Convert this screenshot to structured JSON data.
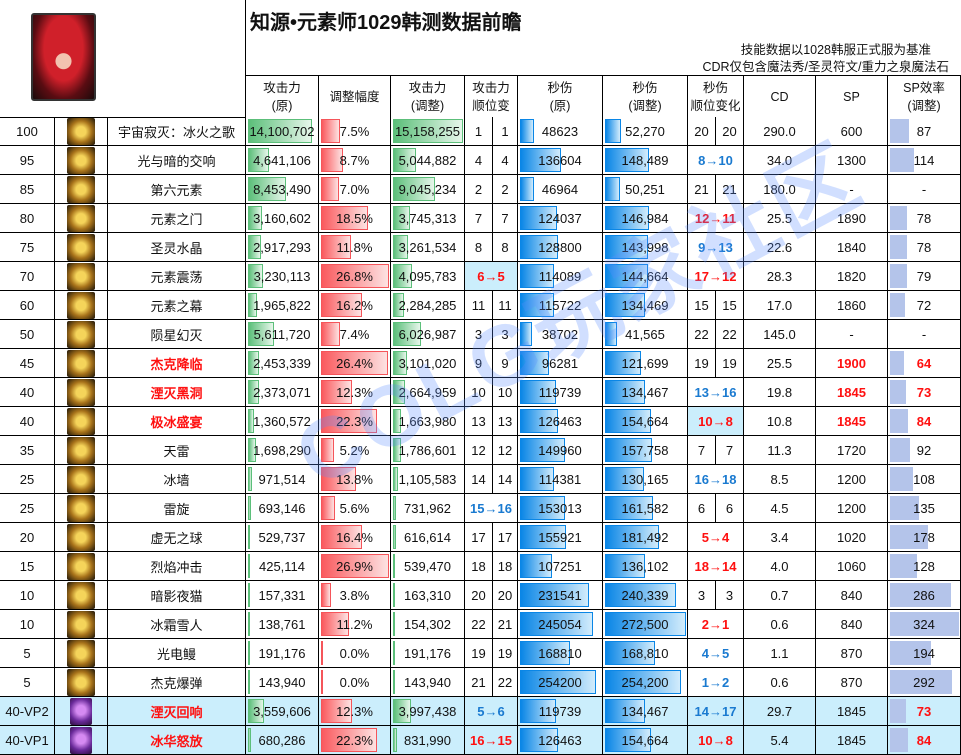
{
  "title": "知源•元素师1029韩测数据前瞻",
  "notes": [
    "技能数据以1028韩服正式服为基准",
    "CDR仅包含魔法秀/圣灵符文/重力之泉魔法石"
  ],
  "watermark": "COLG玩家社区",
  "headers": {
    "atk_orig": [
      "攻击力",
      "(原)"
    ],
    "adj": [
      "调整幅度"
    ],
    "atk_new": [
      "攻击力",
      "(调整)"
    ],
    "atk_rank": [
      "攻击力",
      "顺位变"
    ],
    "dps_orig": [
      "秒伤",
      "(原)"
    ],
    "dps_new": [
      "秒伤",
      "(调整)"
    ],
    "dps_rank": [
      "秒伤",
      "顺位变化"
    ],
    "cd": [
      "CD"
    ],
    "sp": [
      "SP"
    ],
    "speff": [
      "SP效率",
      "(调整)"
    ]
  },
  "colors": {
    "red": "#ff1010",
    "blue": "#1a7ad0",
    "green_bar": "#5cbf7a",
    "red_bar": "#fa5a5e",
    "blue_bar": "#0a86e6",
    "sp_bar": "#b4c4ea",
    "highlight": "#cbeefc"
  },
  "rows": [
    {
      "lv": "100",
      "icon": "skill-icon",
      "name": "宇宙寂灭：冰火之歌",
      "atk": "14,100,702",
      "adj": "7.5%",
      "atk2": "15,158,255",
      "ar": [
        "1",
        "1"
      ],
      "dps": "48623",
      "dps2": "52,270",
      "dr": [
        "20",
        "20"
      ],
      "cd": "290.0",
      "sp": "600",
      "eff": "87"
    },
    {
      "lv": "95",
      "icon": "skill-icon",
      "name": "光与暗的交响",
      "atk": "4,641,106",
      "adj": "8.7%",
      "atk2": "5,044,882",
      "ar": [
        "4",
        "4"
      ],
      "dps": "136604",
      "dps2": "148,489",
      "dr": "8→10",
      "drc": "blue",
      "cd": "34.0",
      "sp": "1300",
      "eff": "114"
    },
    {
      "lv": "85",
      "icon": "skill-icon",
      "name": "第六元素",
      "atk": "8,453,490",
      "adj": "7.0%",
      "atk2": "9,045,234",
      "ar": [
        "2",
        "2"
      ],
      "dps": "46964",
      "dps2": "50,251",
      "dr": [
        "21",
        "21"
      ],
      "cd": "180.0",
      "sp": "-",
      "eff": "-"
    },
    {
      "lv": "80",
      "icon": "skill-icon",
      "name": "元素之门",
      "atk": "3,160,602",
      "adj": "18.5%",
      "atk2": "3,745,313",
      "ar": [
        "7",
        "7"
      ],
      "dps": "124037",
      "dps2": "146,984",
      "dr": "12→11",
      "drc": "red",
      "cd": "25.5",
      "sp": "1890",
      "eff": "78"
    },
    {
      "lv": "75",
      "icon": "skill-icon",
      "name": "圣灵水晶",
      "atk": "2,917,293",
      "adj": "11.8%",
      "atk2": "3,261,534",
      "ar": [
        "8",
        "8"
      ],
      "dps": "128800",
      "dps2": "143,998",
      "dr": "9→13",
      "drc": "blue",
      "cd": "22.6",
      "sp": "1840",
      "eff": "78"
    },
    {
      "lv": "70",
      "icon": "skill-icon",
      "name": "元素震荡",
      "atk": "3,230,113",
      "adj": "26.8%",
      "atk2": "4,095,783",
      "ar": "6→5",
      "arc": "red",
      "arhl": true,
      "dps": "114089",
      "dps2": "144,664",
      "dr": "17→12",
      "drc": "red",
      "cd": "28.3",
      "sp": "1820",
      "eff": "79"
    },
    {
      "lv": "60",
      "icon": "skill-icon",
      "name": "元素之幕",
      "atk": "1,965,822",
      "adj": "16.2%",
      "atk2": "2,284,285",
      "ar": [
        "11",
        "11"
      ],
      "dps": "115722",
      "dps2": "134,469",
      "dr": [
        "15",
        "15"
      ],
      "cd": "17.0",
      "sp": "1860",
      "eff": "72"
    },
    {
      "lv": "50",
      "icon": "skill-icon",
      "name": "陨星幻灭",
      "atk": "5,611,720",
      "adj": "7.4%",
      "atk2": "6,026,987",
      "ar": [
        "3",
        "3"
      ],
      "dps": "38702",
      "dps2": "41,565",
      "dr": [
        "22",
        "22"
      ],
      "cd": "145.0",
      "sp": "-",
      "eff": "-"
    },
    {
      "lv": "45",
      "icon": "skill-icon",
      "name": "杰克降临",
      "namered": true,
      "atk": "2,453,339",
      "adj": "26.4%",
      "atk2": "3,101,020",
      "ar": [
        "9",
        "9"
      ],
      "dps": "96281",
      "dps2": "121,699",
      "dr": [
        "19",
        "19"
      ],
      "cd": "25.5",
      "sp": "1900",
      "spred": true,
      "eff": "64",
      "effred": true
    },
    {
      "lv": "40",
      "icon": "skill-icon",
      "name": "湮灭黑洞",
      "namered": true,
      "atk": "2,373,071",
      "adj": "12.3%",
      "atk2": "2,664,959",
      "ar": [
        "10",
        "10"
      ],
      "dps": "119739",
      "dps2": "134,467",
      "dr": "13→16",
      "drc": "blue",
      "cd": "19.8",
      "sp": "1845",
      "spred": true,
      "eff": "73",
      "effred": true
    },
    {
      "lv": "40",
      "icon": "skill-icon",
      "name": "极冰盛宴",
      "namered": true,
      "atk": "1,360,572",
      "adj": "22.3%",
      "atk2": "1,663,980",
      "ar": [
        "13",
        "13"
      ],
      "dps": "126463",
      "dps2": "154,664",
      "dr": "10→8",
      "drc": "red",
      "drhl": true,
      "cd": "10.8",
      "sp": "1845",
      "spred": true,
      "eff": "84",
      "effred": true
    },
    {
      "lv": "35",
      "icon": "skill-icon",
      "name": "天雷",
      "atk": "1,698,290",
      "adj": "5.2%",
      "atk2": "1,786,601",
      "ar": [
        "12",
        "12"
      ],
      "dps": "149960",
      "dps2": "157,758",
      "dr": [
        "7",
        "7"
      ],
      "cd": "11.3",
      "sp": "1720",
      "eff": "92"
    },
    {
      "lv": "25",
      "icon": "skill-icon",
      "name": "冰墙",
      "atk": "971,514",
      "adj": "13.8%",
      "atk2": "1,105,583",
      "ar": [
        "14",
        "14"
      ],
      "dps": "114381",
      "dps2": "130,165",
      "dr": "16→18",
      "drc": "blue",
      "cd": "8.5",
      "sp": "1200",
      "eff": "108"
    },
    {
      "lv": "25",
      "icon": "skill-icon",
      "name": "雷旋",
      "atk": "693,146",
      "adj": "5.6%",
      "atk2": "731,962",
      "ar": "15→16",
      "arc": "blue",
      "dps": "153013",
      "dps2": "161,582",
      "dr": [
        "6",
        "6"
      ],
      "cd": "4.5",
      "sp": "1200",
      "eff": "135"
    },
    {
      "lv": "20",
      "icon": "skill-icon",
      "name": "虚无之球",
      "atk": "529,737",
      "adj": "16.4%",
      "atk2": "616,614",
      "ar": [
        "17",
        "17"
      ],
      "dps": "155921",
      "dps2": "181,492",
      "dr": "5→4",
      "drc": "red",
      "cd": "3.4",
      "sp": "1020",
      "eff": "178"
    },
    {
      "lv": "15",
      "icon": "skill-icon",
      "name": "烈焰冲击",
      "atk": "425,114",
      "adj": "26.9%",
      "atk2": "539,470",
      "ar": [
        "18",
        "18"
      ],
      "dps": "107251",
      "dps2": "136,102",
      "dr": "18→14",
      "drc": "red",
      "cd": "4.0",
      "sp": "1060",
      "eff": "128"
    },
    {
      "lv": "10",
      "icon": "skill-icon",
      "name": "暗影夜猫",
      "atk": "157,331",
      "adj": "3.8%",
      "atk2": "163,310",
      "ar": [
        "20",
        "20"
      ],
      "dps": "231541",
      "dps2": "240,339",
      "dr": [
        "3",
        "3"
      ],
      "cd": "0.7",
      "sp": "840",
      "eff": "286"
    },
    {
      "lv": "10",
      "icon": "skill-icon",
      "name": "冰霜雪人",
      "atk": "138,761",
      "adj": "11.2%",
      "atk2": "154,302",
      "ar": [
        "22",
        "21"
      ],
      "dps": "245054",
      "dps2": "272,500",
      "dr": "2→1",
      "drc": "red",
      "cd": "0.6",
      "sp": "840",
      "eff": "324"
    },
    {
      "lv": "5",
      "icon": "skill-icon",
      "name": "光电鳗",
      "atk": "191,176",
      "adj": "0.0%",
      "atk2": "191,176",
      "ar": [
        "19",
        "19"
      ],
      "dps": "168810",
      "dps2": "168,810",
      "dr": "4→5",
      "drc": "blue",
      "cd": "1.1",
      "sp": "870",
      "eff": "194"
    },
    {
      "lv": "5",
      "icon": "skill-icon",
      "name": "杰克爆弹",
      "atk": "143,940",
      "adj": "0.0%",
      "atk2": "143,940",
      "ar": [
        "21",
        "22"
      ],
      "dps": "254200",
      "dps2": "254,200",
      "dr": "1→2",
      "drc": "blue",
      "cd": "0.6",
      "sp": "870",
      "eff": "292"
    },
    {
      "lv": "40-VP2",
      "vp": true,
      "icon": "vp-skill-icon",
      "name": "湮灭回响",
      "namered": true,
      "atk": "3,559,606",
      "adj": "12.3%",
      "atk2": "3,997,438",
      "ar": "5→6",
      "arc": "blue",
      "dps": "119739",
      "dps2": "134,467",
      "dr": "14→17",
      "drc": "blue",
      "cd": "29.7",
      "sp": "1845",
      "eff": "73",
      "effred": true
    },
    {
      "lv": "40-VP1",
      "vp": true,
      "icon": "vp-skill-icon",
      "name": "冰华怒放",
      "namered": true,
      "atk": "680,286",
      "adj": "22.3%",
      "atk2": "831,990",
      "ar": "16→15",
      "arc": "red",
      "dps": "126463",
      "dps2": "154,664",
      "dr": "10→8",
      "drc": "red",
      "cd": "5.4",
      "sp": "1845",
      "eff": "84",
      "effred": true
    }
  ]
}
